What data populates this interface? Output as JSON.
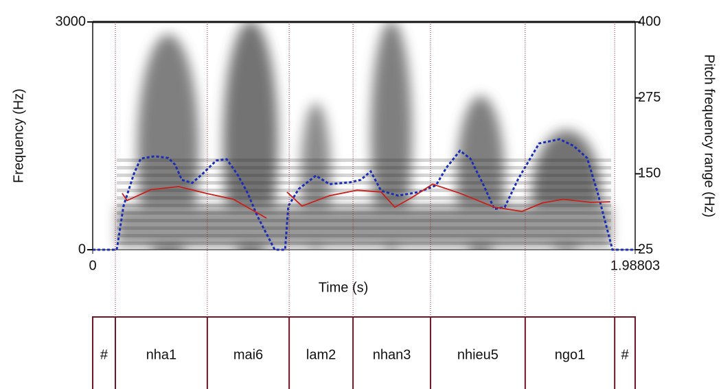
{
  "chart_data": {
    "type": "spectrogram",
    "xlabel": "Time (s)",
    "ylabel": "Frequency (Hz)",
    "y2label": "Pitch frequency range (Hz)",
    "xlim": [
      0,
      1.98803
    ],
    "xticks": [
      0,
      1.98803
    ],
    "ylim": [
      0,
      3000
    ],
    "yticks": [
      0,
      3000
    ],
    "y2lim": [
      25,
      400
    ],
    "y2ticks": [
      25,
      150,
      275,
      400
    ],
    "series": [
      {
        "color": "#1a2db5",
        "style": "dotted",
        "axis": "y2",
        "x": [
          0,
          0.088,
          0.113,
          0.151,
          0.176,
          0.227,
          0.277,
          0.302,
          0.327,
          0.365,
          0.403,
          0.453,
          0.491,
          0.529,
          0.566,
          0.604,
          0.667,
          0.705,
          0.717,
          0.755,
          0.818,
          0.868,
          0.944,
          0.982,
          1.019,
          1.057,
          1.12,
          1.195,
          1.258,
          1.296,
          1.346,
          1.384,
          1.434,
          1.472,
          1.51,
          1.56,
          1.636,
          1.711,
          1.762,
          1.812,
          1.85,
          1.905,
          1.98803
        ],
        "values": [
          25,
          25,
          97,
          150,
          175,
          179,
          176,
          165,
          140,
          135,
          150,
          172,
          174,
          150,
          120,
          80,
          25,
          25,
          97,
          125,
          147,
          133,
          136,
          140,
          154,
          122,
          114,
          120,
          131,
          160,
          188,
          175,
          130,
          92,
          95,
          142,
          200,
          207,
          196,
          176,
          120,
          25,
          25
        ]
      },
      {
        "color": "#c8201a",
        "style": "solid",
        "axis": "y2",
        "x": [
          0.108,
          0.126,
          0.214,
          0.315,
          0.415,
          0.516,
          0.637,
          0.675,
          0.712,
          0.767,
          0.868,
          0.969,
          1.057,
          1.107,
          1.17,
          1.246,
          1.346,
          1.472,
          1.573,
          1.648,
          1.724,
          1.825,
          1.897
        ],
        "values": [
          118,
          106,
          124,
          129,
          118,
          108,
          77,
          null,
          120,
          97,
          114,
          123,
          120,
          95,
          111,
          133,
          118,
          95,
          88,
          102,
          108,
          103,
          104
        ]
      }
    ],
    "tier": {
      "boundaries": [
        0.083,
        0.42,
        0.72,
        0.954,
        1.238,
        1.585,
        1.913
      ],
      "labels": [
        "#",
        "nha1",
        "mai6",
        "lam2",
        "nhan3",
        "nhieu5",
        "ngo1",
        "#"
      ]
    }
  }
}
